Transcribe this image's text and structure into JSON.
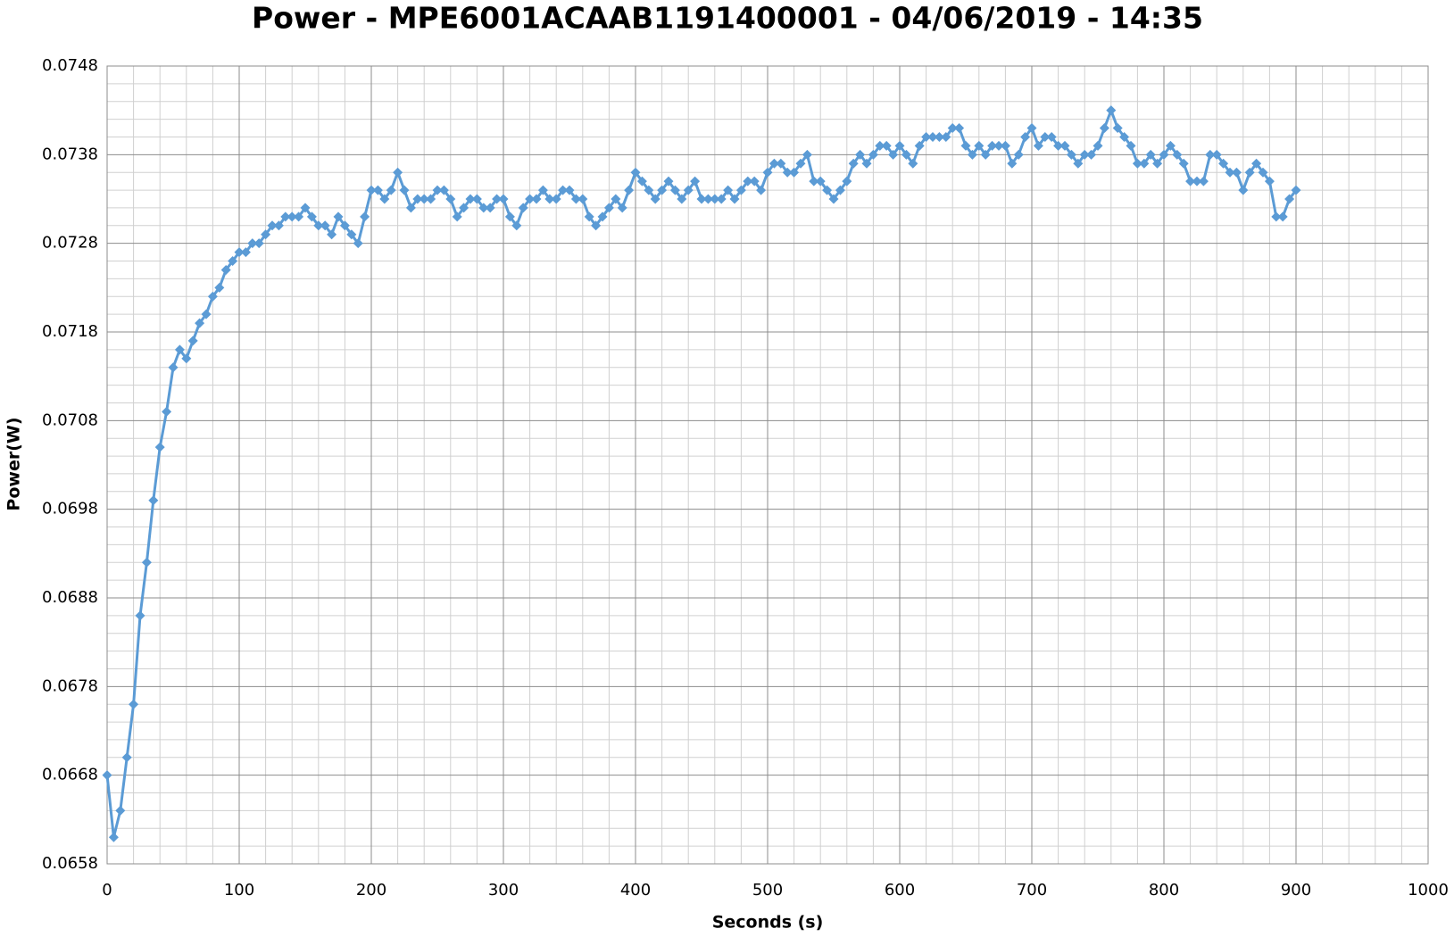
{
  "chart_data": {
    "type": "line",
    "title": "Power - MPE6001ACAAB1191400001 - 04/06/2019 - 14:35",
    "x_label": "Seconds (s)",
    "y_label": "Power(W)",
    "color": "#5b9bd5",
    "marker": "diamond",
    "grid": true,
    "minor_grid": true,
    "xlim": [
      0,
      1000
    ],
    "xticks": [
      0,
      100,
      200,
      300,
      400,
      500,
      600,
      700,
      800,
      900,
      1000
    ],
    "ylim": [
      0.0658,
      0.0748
    ],
    "yticks": [
      0.0658,
      0.0668,
      0.0678,
      0.0688,
      0.0698,
      0.0708,
      0.0718,
      0.0728,
      0.0738,
      0.0748
    ],
    "x": [
      0,
      5,
      10,
      15,
      20,
      25,
      30,
      35,
      40,
      45,
      50,
      55,
      60,
      65,
      70,
      75,
      80,
      85,
      90,
      95,
      100,
      105,
      110,
      115,
      120,
      125,
      130,
      135,
      140,
      145,
      150,
      155,
      160,
      165,
      170,
      175,
      180,
      185,
      190,
      195,
      200,
      205,
      210,
      215,
      220,
      225,
      230,
      235,
      240,
      245,
      250,
      255,
      260,
      265,
      270,
      275,
      280,
      285,
      290,
      295,
      300,
      305,
      310,
      315,
      320,
      325,
      330,
      335,
      340,
      345,
      350,
      355,
      360,
      365,
      370,
      375,
      380,
      385,
      390,
      395,
      400,
      405,
      410,
      415,
      420,
      425,
      430,
      435,
      440,
      445,
      450,
      455,
      460,
      465,
      470,
      475,
      480,
      485,
      490,
      495,
      500,
      505,
      510,
      515,
      520,
      525,
      530,
      535,
      540,
      545,
      550,
      555,
      560,
      565,
      570,
      575,
      580,
      585,
      590,
      595,
      600,
      605,
      610,
      615,
      620,
      625,
      630,
      635,
      640,
      645,
      650,
      655,
      660,
      665,
      670,
      675,
      680,
      685,
      690,
      695,
      700,
      705,
      710,
      715,
      720,
      725,
      730,
      735,
      740,
      745,
      750,
      755,
      760,
      765,
      770,
      775,
      780,
      785,
      790,
      795,
      800,
      805,
      810,
      815,
      820,
      825,
      830,
      835,
      840,
      845,
      850,
      855,
      860,
      865,
      870,
      875,
      880,
      885,
      890,
      895,
      900
    ],
    "values": [
      0.0668,
      0.0661,
      0.0664,
      0.067,
      0.0676,
      0.0686,
      0.0692,
      0.0699,
      0.0705,
      0.0709,
      0.0714,
      0.0716,
      0.0715,
      0.0717,
      0.0719,
      0.072,
      0.0722,
      0.0723,
      0.0725,
      0.0726,
      0.0727,
      0.0727,
      0.0728,
      0.0728,
      0.0729,
      0.073,
      0.073,
      0.0731,
      0.0731,
      0.0731,
      0.0732,
      0.0731,
      0.073,
      0.073,
      0.0729,
      0.0731,
      0.073,
      0.0729,
      0.0728,
      0.0731,
      0.0734,
      0.0734,
      0.0733,
      0.0734,
      0.0736,
      0.0734,
      0.0732,
      0.0733,
      0.0733,
      0.0733,
      0.0734,
      0.0734,
      0.0733,
      0.0731,
      0.0732,
      0.0733,
      0.0733,
      0.0732,
      0.0732,
      0.0733,
      0.0733,
      0.0731,
      0.073,
      0.0732,
      0.0733,
      0.0733,
      0.0734,
      0.0733,
      0.0733,
      0.0734,
      0.0734,
      0.0733,
      0.0733,
      0.0731,
      0.073,
      0.0731,
      0.0732,
      0.0733,
      0.0732,
      0.0734,
      0.0736,
      0.0735,
      0.0734,
      0.0733,
      0.0734,
      0.0735,
      0.0734,
      0.0733,
      0.0734,
      0.0735,
      0.0733,
      0.0733,
      0.0733,
      0.0733,
      0.0734,
      0.0733,
      0.0734,
      0.0735,
      0.0735,
      0.0734,
      0.0736,
      0.0737,
      0.0737,
      0.0736,
      0.0736,
      0.0737,
      0.0738,
      0.0735,
      0.0735,
      0.0734,
      0.0733,
      0.0734,
      0.0735,
      0.0737,
      0.0738,
      0.0737,
      0.0738,
      0.0739,
      0.0739,
      0.0738,
      0.0739,
      0.0738,
      0.0737,
      0.0739,
      0.074,
      0.074,
      0.074,
      0.074,
      0.0741,
      0.0741,
      0.0739,
      0.0738,
      0.0739,
      0.0738,
      0.0739,
      0.0739,
      0.0739,
      0.0737,
      0.0738,
      0.074,
      0.0741,
      0.0739,
      0.074,
      0.074,
      0.0739,
      0.0739,
      0.0738,
      0.0737,
      0.0738,
      0.0738,
      0.0739,
      0.0741,
      0.0743,
      0.0741,
      0.074,
      0.0739,
      0.0737,
      0.0737,
      0.0738,
      0.0737,
      0.0738,
      0.0739,
      0.0738,
      0.0737,
      0.0735,
      0.0735,
      0.0735,
      0.0738,
      0.0738,
      0.0737,
      0.0736,
      0.0736,
      0.0734,
      0.0736,
      0.0737,
      0.0736,
      0.0735,
      0.0731,
      0.0731,
      0.0733,
      0.0734
    ]
  }
}
